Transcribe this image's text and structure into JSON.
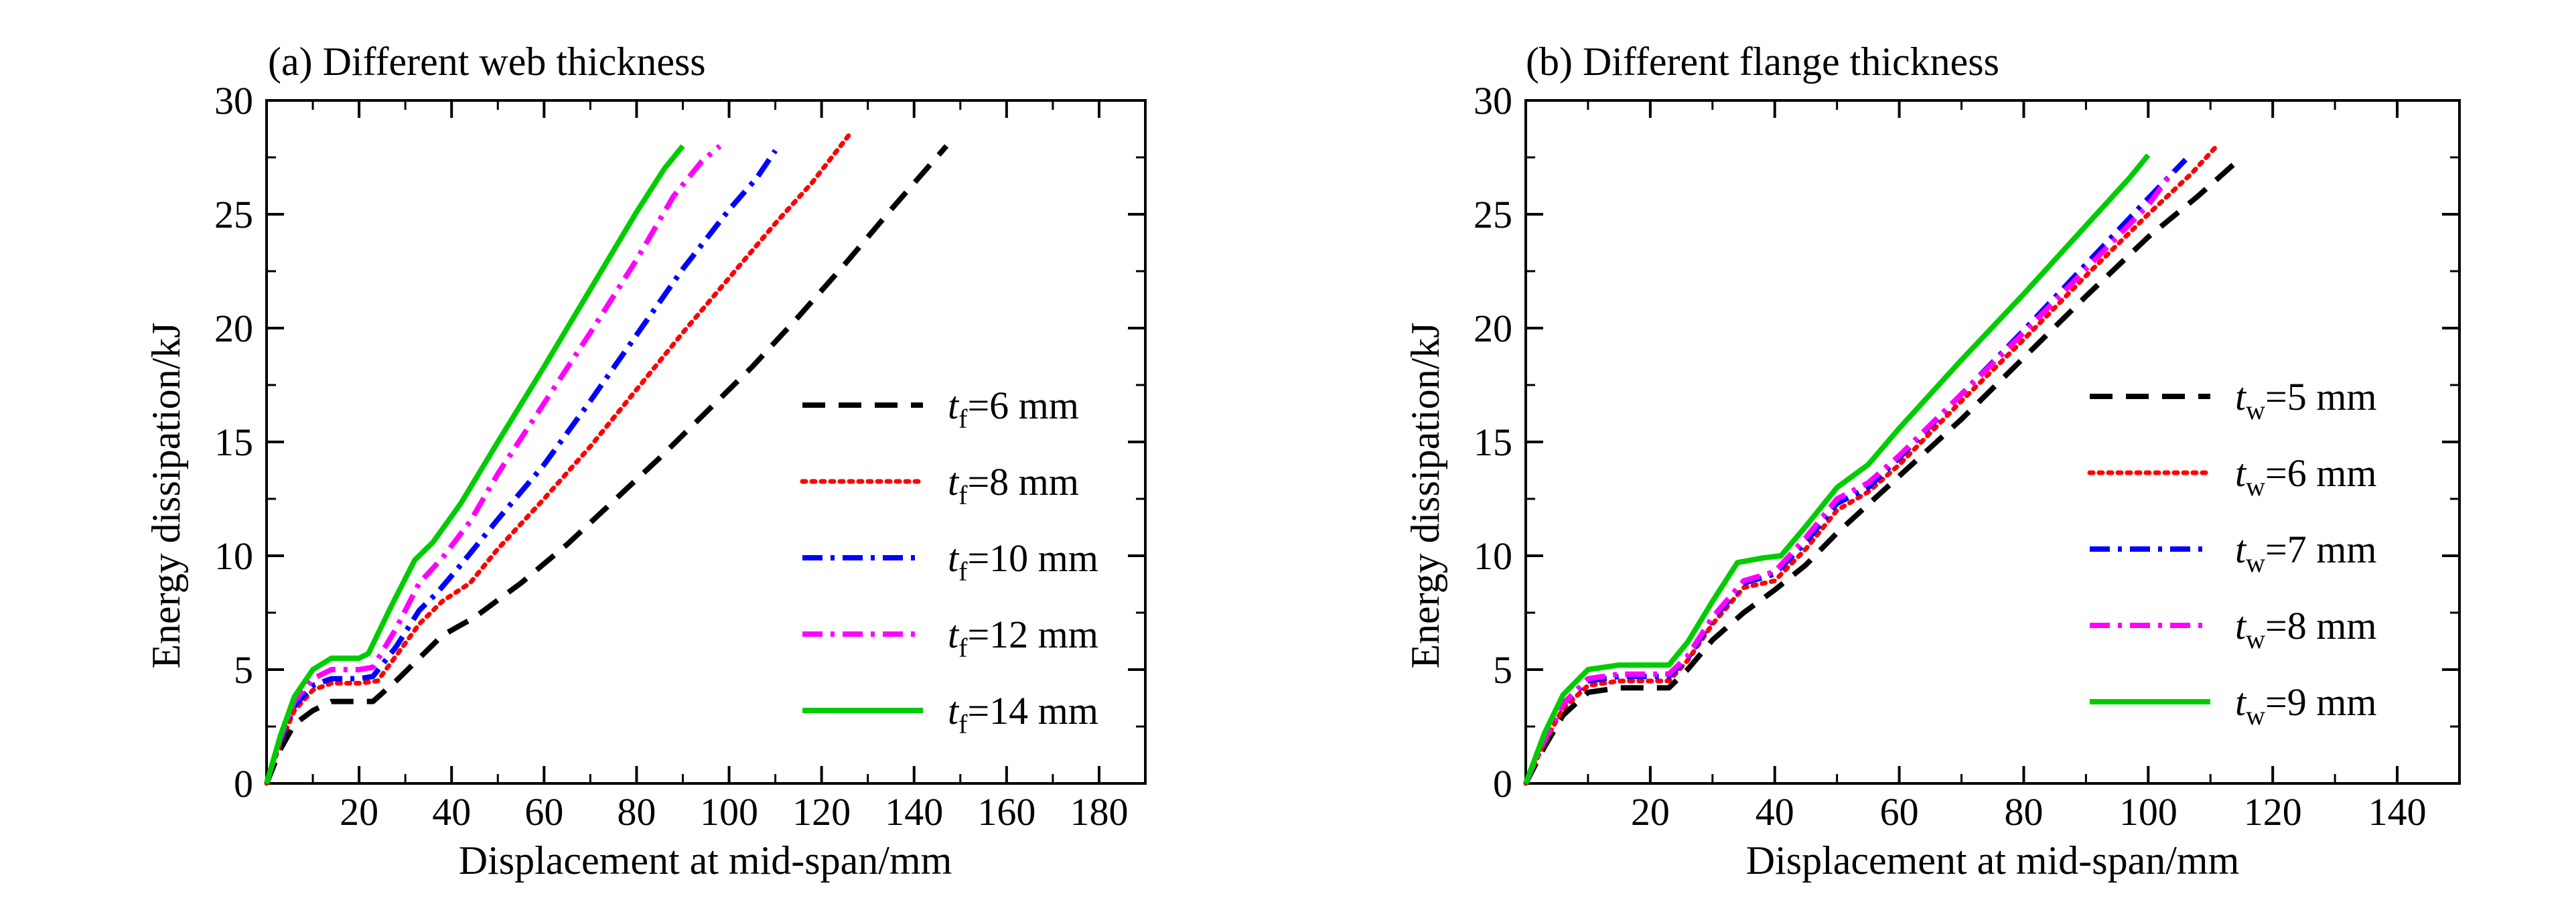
{
  "figure": {
    "y_label": "Energy dissipation/kJ",
    "x_label": "Displacement at mid-span/mm"
  },
  "chart_data": [
    {
      "type": "line",
      "title": "(a) Different web thickness",
      "xlabel": "Displacement at mid-span/mm",
      "ylabel": "Energy dissipation/kJ",
      "xlim": [
        0,
        190
      ],
      "ylim": [
        0,
        30
      ],
      "xticks": [
        20,
        40,
        60,
        80,
        100,
        120,
        140,
        160,
        180
      ],
      "yticks": [
        0,
        5,
        10,
        15,
        20,
        25,
        30
      ],
      "grid": false,
      "legend_position": "right",
      "series": [
        {
          "name": "t_f=6 mm",
          "label_var": "t",
          "label_sub": "f",
          "label_rest": "=6 mm",
          "color": "#000000",
          "style": "dashed",
          "points": [
            [
              0,
              0
            ],
            [
              3,
              1.5
            ],
            [
              6,
              2.6
            ],
            [
              10,
              3.2
            ],
            [
              14,
              3.6
            ],
            [
              20,
              3.6
            ],
            [
              23,
              3.6
            ],
            [
              28,
              4.5
            ],
            [
              33,
              5.5
            ],
            [
              38,
              6.5
            ],
            [
              45,
              7.3
            ],
            [
              55,
              8.8
            ],
            [
              65,
              10.5
            ],
            [
              75,
              12.4
            ],
            [
              85,
              14.3
            ],
            [
              95,
              16.3
            ],
            [
              105,
              18.3
            ],
            [
              115,
              20.5
            ],
            [
              125,
              22.8
            ],
            [
              135,
              25.2
            ],
            [
              147,
              28
            ]
          ]
        },
        {
          "name": "t_f=8 mm",
          "label_var": "t",
          "label_sub": "f",
          "label_rest": "=8 mm",
          "color": "#ff0000",
          "style": "dotted",
          "points": [
            [
              0,
              0
            ],
            [
              3,
              1.8
            ],
            [
              6,
              3.2
            ],
            [
              10,
              4.1
            ],
            [
              14,
              4.4
            ],
            [
              20,
              4.4
            ],
            [
              24,
              4.5
            ],
            [
              28,
              5.6
            ],
            [
              33,
              7
            ],
            [
              38,
              8
            ],
            [
              44,
              8.8
            ],
            [
              50,
              10.3
            ],
            [
              60,
              12.5
            ],
            [
              70,
              14.8
            ],
            [
              80,
              17.3
            ],
            [
              90,
              19.8
            ],
            [
              100,
              22.2
            ],
            [
              110,
              24.6
            ],
            [
              118,
              26.4
            ],
            [
              126,
              28.5
            ]
          ]
        },
        {
          "name": "t_f=10 mm",
          "label_var": "t",
          "label_sub": "f",
          "label_rest": "=10 mm",
          "color": "#0000ff",
          "style": "dashdot",
          "points": [
            [
              0,
              0
            ],
            [
              3,
              1.9
            ],
            [
              6,
              3.4
            ],
            [
              10,
              4.3
            ],
            [
              14,
              4.6
            ],
            [
              20,
              4.6
            ],
            [
              23,
              4.7
            ],
            [
              28,
              6
            ],
            [
              33,
              7.6
            ],
            [
              37,
              8.4
            ],
            [
              42,
              9.6
            ],
            [
              50,
              11.6
            ],
            [
              60,
              14
            ],
            [
              70,
              16.8
            ],
            [
              80,
              19.7
            ],
            [
              90,
              22.6
            ],
            [
              100,
              25.2
            ],
            [
              106,
              26.6
            ],
            [
              110,
              27.8
            ]
          ]
        },
        {
          "name": "t_f=12 mm",
          "label_var": "t",
          "label_sub": "f",
          "label_rest": "=12 mm",
          "color": "#ff00ff",
          "style": "dashdot",
          "points": [
            [
              0,
              0
            ],
            [
              3,
              2
            ],
            [
              6,
              3.6
            ],
            [
              10,
              4.6
            ],
            [
              14,
              5
            ],
            [
              20,
              5
            ],
            [
              23,
              5.1
            ],
            [
              28,
              6.8
            ],
            [
              33,
              8.8
            ],
            [
              38,
              9.9
            ],
            [
              44,
              11.5
            ],
            [
              50,
              13.6
            ],
            [
              60,
              16.7
            ],
            [
              70,
              19.8
            ],
            [
              80,
              23
            ],
            [
              88,
              25.8
            ],
            [
              94,
              27.3
            ],
            [
              98,
              28
            ]
          ]
        },
        {
          "name": "t_f=14 mm",
          "label_var": "t",
          "label_sub": "f",
          "label_rest": "=14 mm",
          "color": "#00cc00",
          "style": "solid",
          "points": [
            [
              0,
              0
            ],
            [
              3,
              2.1
            ],
            [
              6,
              3.8
            ],
            [
              10,
              5
            ],
            [
              14,
              5.5
            ],
            [
              20,
              5.5
            ],
            [
              22,
              5.7
            ],
            [
              27,
              7.8
            ],
            [
              32,
              9.8
            ],
            [
              36,
              10.6
            ],
            [
              42,
              12.3
            ],
            [
              50,
              15
            ],
            [
              60,
              18.3
            ],
            [
              70,
              21.7
            ],
            [
              80,
              25.1
            ],
            [
              86,
              27
            ],
            [
              90,
              28
            ]
          ]
        }
      ]
    },
    {
      "type": "line",
      "title": "(b) Different flange thickness",
      "xlabel": "Displacement at mid-span/mm",
      "ylabel": "Energy dissipation/kJ",
      "xlim": [
        0,
        150
      ],
      "ylim": [
        0,
        30
      ],
      "xticks": [
        20,
        40,
        60,
        80,
        100,
        120,
        140
      ],
      "yticks": [
        0,
        5,
        10,
        15,
        20,
        25,
        30
      ],
      "grid": false,
      "legend_position": "right",
      "series": [
        {
          "name": "t_w=5 mm",
          "label_var": "t",
          "label_sub": "w",
          "label_rest": "=5 mm",
          "color": "#000000",
          "style": "dashed",
          "points": [
            [
              0,
              0
            ],
            [
              3,
              1.6
            ],
            [
              6,
              3
            ],
            [
              10,
              4
            ],
            [
              15,
              4.2
            ],
            [
              23,
              4.2
            ],
            [
              26,
              5
            ],
            [
              30,
              6.3
            ],
            [
              35,
              7.5
            ],
            [
              40,
              8.5
            ],
            [
              45,
              9.6
            ],
            [
              50,
              11
            ],
            [
              60,
              13.5
            ],
            [
              70,
              16
            ],
            [
              80,
              18.7
            ],
            [
              90,
              21.4
            ],
            [
              100,
              24
            ],
            [
              108,
              25.8
            ],
            [
              115,
              27.5
            ]
          ]
        },
        {
          "name": "t_w=6 mm",
          "label_var": "t",
          "label_sub": "w",
          "label_rest": "=6 mm",
          "color": "#ff0000",
          "style": "dotted",
          "points": [
            [
              0,
              0
            ],
            [
              3,
              1.8
            ],
            [
              6,
              3.3
            ],
            [
              10,
              4.3
            ],
            [
              15,
              4.5
            ],
            [
              23,
              4.5
            ],
            [
              26,
              5.4
            ],
            [
              30,
              7
            ],
            [
              35,
              8.6
            ],
            [
              40,
              8.9
            ],
            [
              45,
              10.3
            ],
            [
              50,
              12
            ],
            [
              55,
              12.8
            ],
            [
              60,
              14
            ],
            [
              70,
              16.8
            ],
            [
              80,
              19.5
            ],
            [
              90,
              22.3
            ],
            [
              100,
              25
            ],
            [
              107,
              26.8
            ],
            [
              111,
              28
            ]
          ]
        },
        {
          "name": "t_w=7 mm",
          "label_var": "t",
          "label_sub": "w",
          "label_rest": "=7 mm",
          "color": "#0000ff",
          "style": "dashdot",
          "points": [
            [
              0,
              0
            ],
            [
              3,
              1.9
            ],
            [
              6,
              3.5
            ],
            [
              10,
              4.5
            ],
            [
              15,
              4.7
            ],
            [
              23,
              4.7
            ],
            [
              26,
              5.5
            ],
            [
              30,
              7.2
            ],
            [
              35,
              8.8
            ],
            [
              40,
              9.2
            ],
            [
              45,
              10.6
            ],
            [
              50,
              12.3
            ],
            [
              55,
              13
            ],
            [
              60,
              14.3
            ],
            [
              70,
              17.1
            ],
            [
              80,
              19.9
            ],
            [
              90,
              22.8
            ],
            [
              100,
              25.7
            ],
            [
              106,
              27.4
            ]
          ]
        },
        {
          "name": "t_w=8 mm",
          "label_var": "t",
          "label_sub": "w",
          "label_rest": "=8 mm",
          "color": "#ff00ff",
          "style": "dashdot",
          "points": [
            [
              0,
              0
            ],
            [
              3,
              1.9
            ],
            [
              6,
              3.5
            ],
            [
              10,
              4.6
            ],
            [
              15,
              4.8
            ],
            [
              23,
              4.8
            ],
            [
              26,
              5.6
            ],
            [
              30,
              7.3
            ],
            [
              35,
              8.9
            ],
            [
              40,
              9.3
            ],
            [
              45,
              10.8
            ],
            [
              50,
              12.5
            ],
            [
              55,
              13.2
            ],
            [
              60,
              14.4
            ],
            [
              70,
              17.1
            ],
            [
              80,
              19.8
            ],
            [
              90,
              22.6
            ],
            [
              100,
              25.4
            ],
            [
              104,
              26.9
            ]
          ]
        },
        {
          "name": "t_w=9 mm",
          "label_var": "t",
          "label_sub": "w",
          "label_rest": "=9 mm",
          "color": "#00cc00",
          "style": "solid",
          "points": [
            [
              0,
              0
            ],
            [
              3,
              2.2
            ],
            [
              6,
              3.9
            ],
            [
              10,
              5
            ],
            [
              15,
              5.2
            ],
            [
              23,
              5.2
            ],
            [
              26,
              6.2
            ],
            [
              30,
              8
            ],
            [
              34,
              9.7
            ],
            [
              38,
              9.9
            ],
            [
              41,
              10
            ],
            [
              45,
              11.3
            ],
            [
              50,
              13
            ],
            [
              55,
              14
            ],
            [
              60,
              15.6
            ],
            [
              70,
              18.6
            ],
            [
              80,
              21.5
            ],
            [
              90,
              24.5
            ],
            [
              97,
              26.6
            ],
            [
              100,
              27.6
            ]
          ]
        }
      ]
    }
  ]
}
